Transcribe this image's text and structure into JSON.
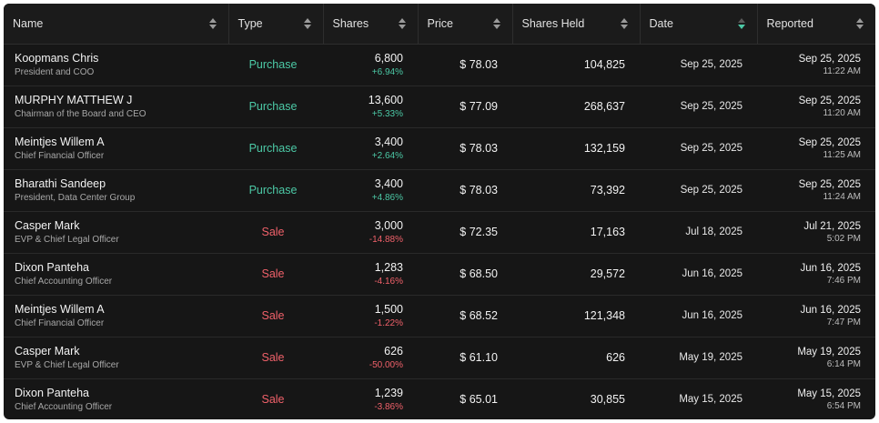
{
  "columns": [
    {
      "key": "name",
      "label": "Name",
      "sort": "none"
    },
    {
      "key": "type",
      "label": "Type",
      "sort": "none"
    },
    {
      "key": "shares",
      "label": "Shares",
      "sort": "none"
    },
    {
      "key": "price",
      "label": "Price",
      "sort": "none"
    },
    {
      "key": "shares_held",
      "label": "Shares Held",
      "sort": "none"
    },
    {
      "key": "date",
      "label": "Date",
      "sort": "descending"
    },
    {
      "key": "reported",
      "label": "Reported",
      "sort": "none"
    }
  ],
  "colors": {
    "background": "#161616",
    "purchase": "#4cc9a6",
    "sale": "#f0616a",
    "active_sort": "#4cc9a6"
  },
  "rows": [
    {
      "name": "Koopmans Chris",
      "title": "President and COO",
      "type": "Purchase",
      "shares": "6,800",
      "change": "+6.94%",
      "price": "$ 78.03",
      "shares_held": "104,825",
      "date": "Sep 25, 2025",
      "reported_date": "Sep 25, 2025",
      "reported_time": "11:22 AM"
    },
    {
      "name": "MURPHY MATTHEW J",
      "title": "Chairman of the Board and CEO",
      "type": "Purchase",
      "shares": "13,600",
      "change": "+5.33%",
      "price": "$ 77.09",
      "shares_held": "268,637",
      "date": "Sep 25, 2025",
      "reported_date": "Sep 25, 2025",
      "reported_time": "11:20 AM"
    },
    {
      "name": "Meintjes Willem A",
      "title": "Chief Financial Officer",
      "type": "Purchase",
      "shares": "3,400",
      "change": "+2.64%",
      "price": "$ 78.03",
      "shares_held": "132,159",
      "date": "Sep 25, 2025",
      "reported_date": "Sep 25, 2025",
      "reported_time": "11:25 AM"
    },
    {
      "name": "Bharathi Sandeep",
      "title": "President, Data Center Group",
      "type": "Purchase",
      "shares": "3,400",
      "change": "+4.86%",
      "price": "$ 78.03",
      "shares_held": "73,392",
      "date": "Sep 25, 2025",
      "reported_date": "Sep 25, 2025",
      "reported_time": "11:24 AM"
    },
    {
      "name": "Casper Mark",
      "title": "EVP & Chief Legal Officer",
      "type": "Sale",
      "shares": "3,000",
      "change": "-14.88%",
      "price": "$ 72.35",
      "shares_held": "17,163",
      "date": "Jul 18, 2025",
      "reported_date": "Jul 21, 2025",
      "reported_time": "5:02 PM"
    },
    {
      "name": "Dixon Panteha",
      "title": "Chief Accounting Officer",
      "type": "Sale",
      "shares": "1,283",
      "change": "-4.16%",
      "price": "$ 68.50",
      "shares_held": "29,572",
      "date": "Jun 16, 2025",
      "reported_date": "Jun 16, 2025",
      "reported_time": "7:46 PM"
    },
    {
      "name": "Meintjes Willem A",
      "title": "Chief Financial Officer",
      "type": "Sale",
      "shares": "1,500",
      "change": "-1.22%",
      "price": "$ 68.52",
      "shares_held": "121,348",
      "date": "Jun 16, 2025",
      "reported_date": "Jun 16, 2025",
      "reported_time": "7:47 PM"
    },
    {
      "name": "Casper Mark",
      "title": "EVP & Chief Legal Officer",
      "type": "Sale",
      "shares": "626",
      "change": "-50.00%",
      "price": "$ 61.10",
      "shares_held": "626",
      "date": "May 19, 2025",
      "reported_date": "May 19, 2025",
      "reported_time": "6:14 PM"
    },
    {
      "name": "Dixon Panteha",
      "title": "Chief Accounting Officer",
      "type": "Sale",
      "shares": "1,239",
      "change": "-3.86%",
      "price": "$ 65.01",
      "shares_held": "30,855",
      "date": "May 15, 2025",
      "reported_date": "May 15, 2025",
      "reported_time": "6:54 PM"
    }
  ]
}
